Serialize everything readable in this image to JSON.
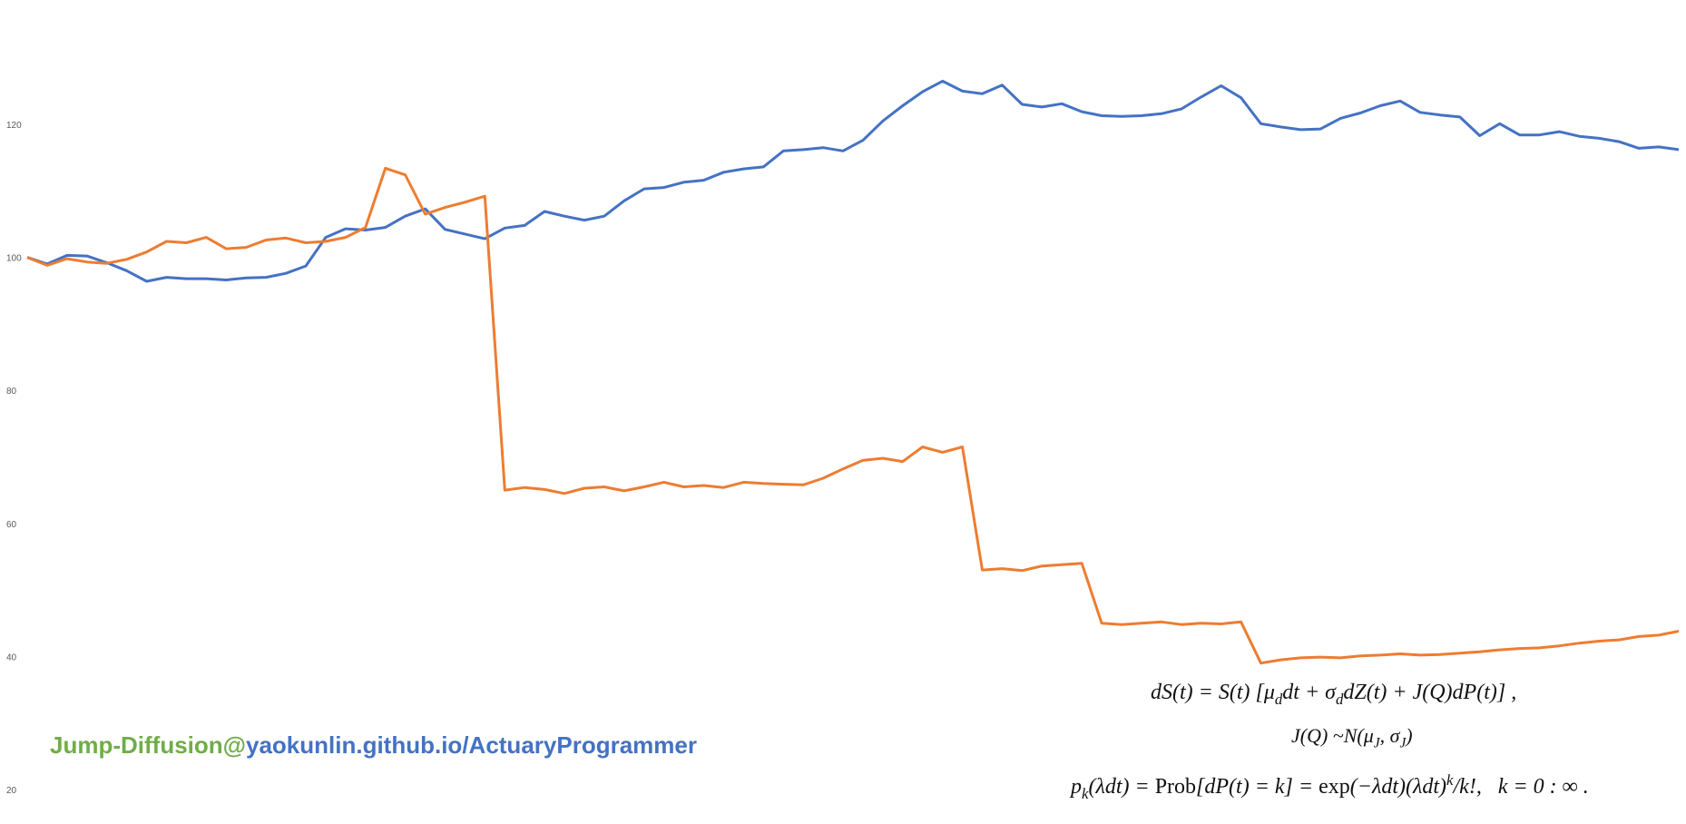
{
  "chart_data": {
    "type": "line",
    "title": "",
    "xlabel": "",
    "ylabel": "",
    "ylim": [
      20,
      140
    ],
    "y_ticks": [
      "120",
      "100",
      "80",
      "60",
      "40",
      "20"
    ],
    "grid": false,
    "legend": "none",
    "x": [
      0,
      3,
      6,
      9,
      12,
      15,
      18,
      21,
      24,
      27,
      30,
      33,
      36,
      39,
      42,
      45,
      48,
      51,
      54,
      57,
      60,
      63,
      66,
      69,
      72,
      75,
      78,
      81,
      84,
      87,
      90,
      93,
      96,
      99,
      102,
      105,
      108,
      111,
      114,
      117,
      120,
      123,
      126,
      129,
      132,
      135,
      138,
      141,
      144,
      147,
      150,
      153,
      156,
      159,
      162,
      165,
      168,
      171,
      174,
      177,
      180,
      183,
      186,
      189,
      192,
      195,
      198,
      201,
      204,
      207,
      210,
      213,
      216,
      219,
      222,
      225,
      228,
      231,
      234,
      237,
      240,
      243,
      246,
      249
    ],
    "series": [
      {
        "color": "#4472c4",
        "values": [
          100.0,
          99.0,
          100.3,
          100.2,
          99.2,
          98.0,
          96.4,
          97.0,
          96.8,
          96.8,
          96.6,
          96.9,
          97.0,
          97.6,
          98.7,
          103.0,
          104.3,
          104.1,
          104.5,
          106.2,
          107.3,
          104.2,
          103.5,
          102.8,
          104.4,
          104.8,
          106.9,
          106.2,
          105.6,
          106.2,
          108.5,
          110.3,
          110.5,
          111.3,
          111.6,
          112.8,
          113.3,
          113.6,
          116.0,
          116.2,
          116.5,
          116.0,
          117.6,
          120.5,
          122.8,
          124.9,
          126.5,
          125.0,
          124.6,
          125.9,
          123.0,
          122.6,
          123.1,
          121.9,
          121.3,
          121.2,
          121.3,
          121.6,
          122.3,
          124.1,
          125.8,
          124.0,
          120.1,
          119.6,
          119.2,
          119.3,
          120.9,
          121.7,
          122.8,
          123.5,
          121.8,
          121.4,
          121.1,
          118.3,
          120.1,
          118.4,
          118.4,
          118.9,
          118.2,
          117.9,
          117.4,
          116.4,
          116.6,
          116.2
        ]
      },
      {
        "color": "#ed7d31",
        "values": [
          100.0,
          98.8,
          99.8,
          99.3,
          99.1,
          99.7,
          100.8,
          102.4,
          102.2,
          103.0,
          101.3,
          101.5,
          102.6,
          102.9,
          102.2,
          102.4,
          103.0,
          104.5,
          113.4,
          112.4,
          106.5,
          107.5,
          108.3,
          109.2,
          65.0,
          65.4,
          65.1,
          64.5,
          65.3,
          65.5,
          64.9,
          65.5,
          66.2,
          65.5,
          65.7,
          65.4,
          66.2,
          66.0,
          65.9,
          65.8,
          66.8,
          68.2,
          69.5,
          69.8,
          69.3,
          71.5,
          70.7,
          71.5,
          53.0,
          53.2,
          52.9,
          53.6,
          53.8,
          54.0,
          45.0,
          44.8,
          45.0,
          45.2,
          44.8,
          45.0,
          44.9,
          45.2,
          39.0,
          39.5,
          39.8,
          39.9,
          39.8,
          40.1,
          40.2,
          40.4,
          40.2,
          40.3,
          40.5,
          40.7,
          41.0,
          41.2,
          41.3,
          41.6,
          42.0,
          42.3,
          42.5,
          43.0,
          43.2,
          43.8
        ]
      }
    ]
  },
  "watermark": {
    "part1": "Jump-Diffusion@",
    "part2": "yaokunlin.github.io/ActuaryProgrammer"
  },
  "colors": {
    "blue": "#4472c4",
    "orange": "#ed7d31",
    "green": "#70ad47"
  }
}
